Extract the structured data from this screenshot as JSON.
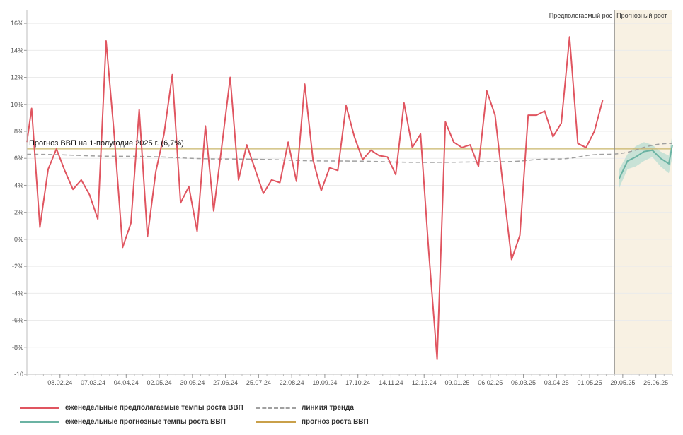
{
  "chart_data": {
    "type": "line",
    "title": "",
    "xlabel": "",
    "ylabel": "",
    "ylim": [
      -10,
      17
    ],
    "y_ticks": [
      -10,
      -8,
      -6,
      -4,
      -2,
      0,
      2,
      4,
      6,
      8,
      10,
      12,
      14,
      16
    ],
    "y_tick_labels": [
      "-10",
      "-8%",
      "-6%",
      "-4%",
      "-2%",
      "0%",
      "2%",
      "4%",
      "6%",
      "8%",
      "10%",
      "12%",
      "14%",
      "16%"
    ],
    "x_tick_labels": [
      {
        "label": "08.02.24",
        "date": "2024-02-08"
      },
      {
        "label": "07.03.24",
        "date": "2024-03-07"
      },
      {
        "label": "04.04.24",
        "date": "2024-04-04"
      },
      {
        "label": "02.05.24",
        "date": "2024-05-02"
      },
      {
        "label": "30.05.24",
        "date": "2024-05-30"
      },
      {
        "label": "27.06.24",
        "date": "2024-06-27"
      },
      {
        "label": "25.07.24",
        "date": "2024-07-25"
      },
      {
        "label": "22.08.24",
        "date": "2024-08-22"
      },
      {
        "label": "19.09.24",
        "date": "2024-09-19"
      },
      {
        "label": "17.10.24",
        "date": "2024-10-17"
      },
      {
        "label": "14.11.24",
        "date": "2024-11-14"
      },
      {
        "label": "12.12.24",
        "date": "2024-12-12"
      },
      {
        "label": "09.01.25",
        "date": "2025-01-09"
      },
      {
        "label": "06.02.25",
        "date": "2025-02-06"
      },
      {
        "label": "06.03.25",
        "date": "2025-03-06"
      },
      {
        "label": "03.04.25",
        "date": "2025-04-03"
      },
      {
        "label": "01.05.25",
        "date": "2025-05-01"
      },
      {
        "label": "29.05.25",
        "date": "2025-05-29"
      },
      {
        "label": "26.06.25",
        "date": "2025-06-26"
      }
    ],
    "x_range": [
      "2024-01-11",
      "2025-07-10"
    ],
    "forecast_start": "2025-05-22",
    "regions": {
      "left_label": "Предпологаемый рос",
      "right_label": "Прогнозный рост",
      "forecast_fill": "#f8f1e3"
    },
    "reference_line": {
      "value": 6.7,
      "label": "Прогноз ВВП на 1-полугодие 2025 г. (6,7%)",
      "color": "#c9b56a"
    },
    "series": [
      {
        "name": "еженедельные предполагаемые темпы роста ВВП",
        "color": "#e05560",
        "dates": [
          "2024-01-11",
          "2024-01-15",
          "2024-01-22",
          "2024-01-29",
          "2024-02-05",
          "2024-02-12",
          "2024-02-19",
          "2024-02-26",
          "2024-03-04",
          "2024-03-11",
          "2024-03-18",
          "2024-03-25",
          "2024-04-01",
          "2024-04-08",
          "2024-04-15",
          "2024-04-22",
          "2024-04-29",
          "2024-05-06",
          "2024-05-13",
          "2024-05-20",
          "2024-05-27",
          "2024-06-03",
          "2024-06-10",
          "2024-06-17",
          "2024-06-24",
          "2024-07-01",
          "2024-07-08",
          "2024-07-15",
          "2024-07-22",
          "2024-07-29",
          "2024-08-05",
          "2024-08-12",
          "2024-08-19",
          "2024-08-26",
          "2024-09-02",
          "2024-09-09",
          "2024-09-16",
          "2024-09-23",
          "2024-09-30",
          "2024-10-07",
          "2024-10-14",
          "2024-10-21",
          "2024-10-28",
          "2024-11-04",
          "2024-11-11",
          "2024-11-18",
          "2024-11-25",
          "2024-12-02",
          "2024-12-09",
          "2024-12-16",
          "2024-12-23",
          "2024-12-30",
          "2025-01-06",
          "2025-01-13",
          "2025-01-20",
          "2025-01-27",
          "2025-02-03",
          "2025-02-10",
          "2025-02-17",
          "2025-02-24",
          "2025-03-03",
          "2025-03-10",
          "2025-03-17",
          "2025-03-24",
          "2025-03-31",
          "2025-04-07",
          "2025-04-14",
          "2025-04-21",
          "2025-04-28",
          "2025-05-05",
          "2025-05-12"
        ],
        "values": [
          7.2,
          9.7,
          0.9,
          5.2,
          6.7,
          5.1,
          3.7,
          4.4,
          3.3,
          1.5,
          14.7,
          7.6,
          -0.6,
          1.2,
          9.6,
          0.2,
          5.0,
          7.8,
          12.2,
          2.7,
          3.9,
          0.6,
          8.4,
          2.1,
          7.0,
          12.0,
          4.4,
          7.0,
          5.2,
          3.4,
          4.4,
          4.2,
          7.2,
          4.3,
          11.5,
          5.9,
          3.6,
          5.3,
          5.1,
          9.9,
          7.6,
          5.9,
          6.6,
          6.2,
          6.1,
          4.8,
          10.1,
          6.8,
          7.8,
          -1.0,
          -8.9,
          8.7,
          7.2,
          6.8,
          7.0,
          5.4,
          11.0,
          9.2,
          3.8,
          -1.5,
          0.3,
          9.2,
          9.2,
          9.5,
          7.6,
          8.6,
          15.0,
          7.1,
          6.8,
          8.0,
          10.3
        ]
      },
      {
        "name": "линиия тренда",
        "color": "#a0a0a0",
        "dates": [
          "2024-01-11",
          "2024-04-01",
          "2024-07-01",
          "2024-10-01",
          "2024-12-15",
          "2025-02-15",
          "2025-04-01",
          "2025-05-15",
          "2025-07-10"
        ],
        "values": [
          6.3,
          6.15,
          5.95,
          5.8,
          5.7,
          5.75,
          5.95,
          6.3,
          7.1
        ]
      },
      {
        "name": "еженедельные прогнозные темпы роста ВВП",
        "color": "#6bb3a3",
        "band_color": "#b8dcd2",
        "dates": [
          "2025-05-26",
          "2025-06-02",
          "2025-06-09",
          "2025-06-16",
          "2025-06-23",
          "2025-06-30",
          "2025-07-07",
          "2025-07-10"
        ],
        "values": [
          4.5,
          5.8,
          6.1,
          6.5,
          6.6,
          6.0,
          5.6,
          7.0
        ],
        "upper": [
          5.2,
          6.3,
          6.9,
          7.2,
          7.0,
          6.5,
          6.2,
          7.8
        ],
        "lower": [
          3.8,
          5.2,
          5.4,
          5.8,
          6.1,
          5.4,
          4.9,
          6.1
        ]
      },
      {
        "name": "прогноз роста ВВП",
        "color": "#c9a04a"
      }
    ],
    "legend": {
      "position": "bottom",
      "items": [
        {
          "label": "еженедельные предполагаемые темпы роста ВВП",
          "color": "#e05560",
          "style": "solid"
        },
        {
          "label": "линиия тренда",
          "color": "#a0a0a0",
          "style": "dashed"
        },
        {
          "label": "еженедельные прогнозные темпы роста ВВП",
          "color": "#6bb3a3",
          "style": "solid"
        },
        {
          "label": "прогноз роста ВВП",
          "color": "#c9a04a",
          "style": "solid"
        }
      ]
    },
    "grid": {
      "horizontal": true,
      "vertical": false,
      "color": "#ebebeb"
    }
  }
}
